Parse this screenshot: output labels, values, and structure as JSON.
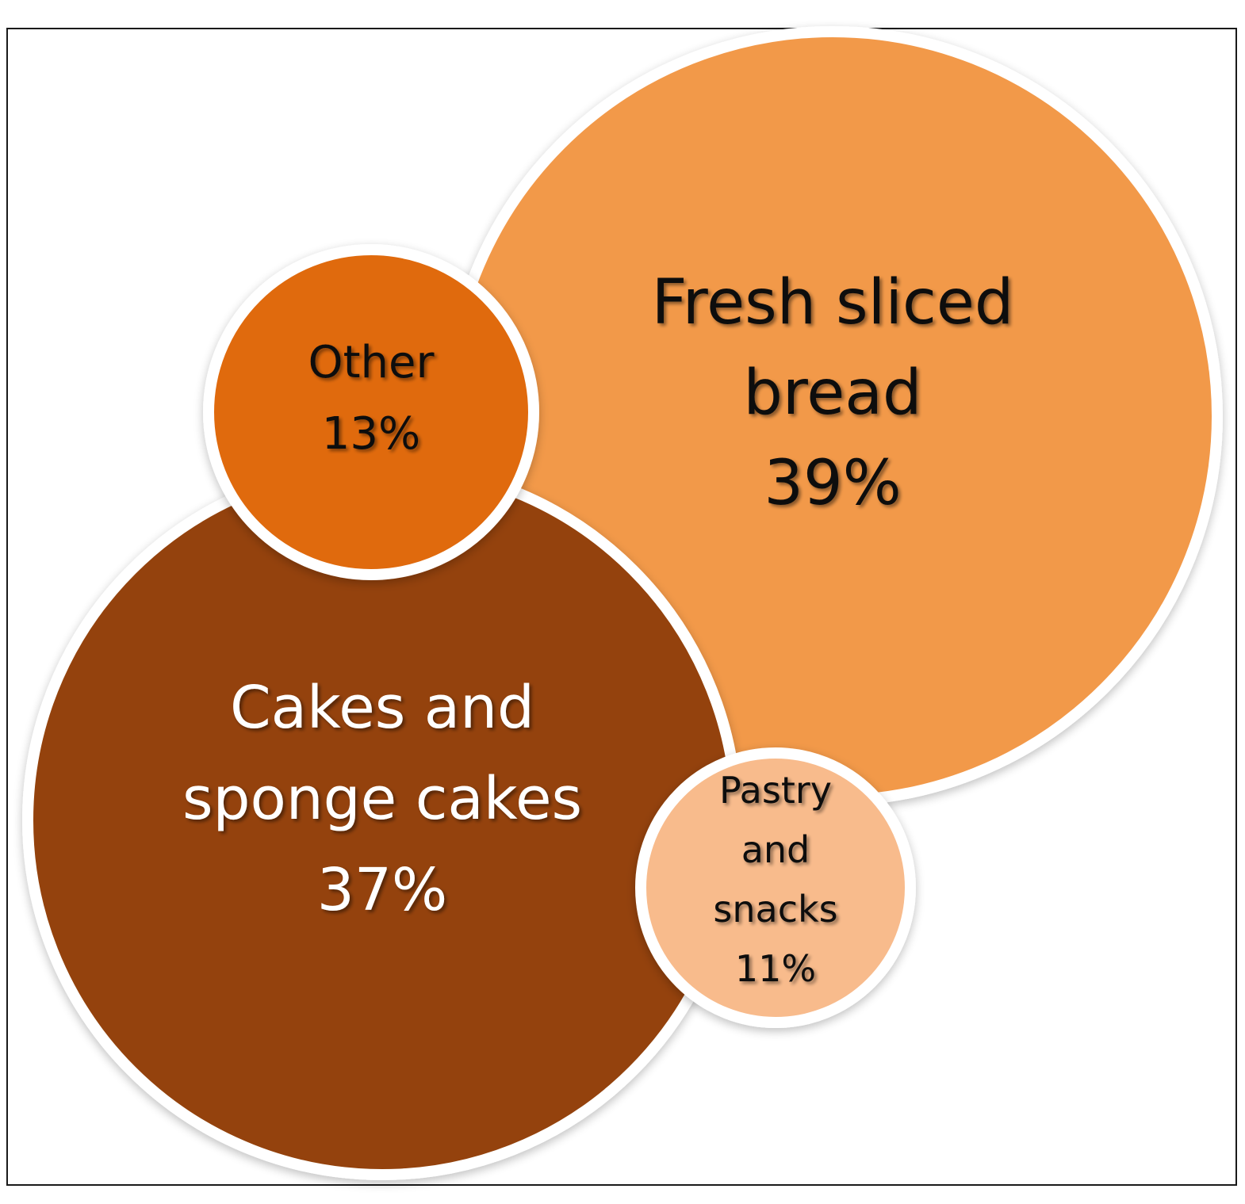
{
  "chart_data": {
    "type": "bubble",
    "series": [
      {
        "id": "fresh",
        "label_lines": [
          "Fresh sliced",
          "bread"
        ],
        "value_label": "39%",
        "value": 39,
        "color": "#f2994a"
      },
      {
        "id": "cakes",
        "label_lines": [
          "Cakes and",
          "sponge cakes"
        ],
        "value_label": "37%",
        "value": 37,
        "color": "#944308"
      },
      {
        "id": "other",
        "label_lines": [
          "Other"
        ],
        "value_label": "13%",
        "value": 13,
        "color": "#e06a0e"
      },
      {
        "id": "pastry",
        "label_lines": [
          "Pastry",
          "and",
          "snacks"
        ],
        "value_label": "11%",
        "value": 11,
        "color": "#f8bb8c"
      }
    ],
    "title": "",
    "legend": "none"
  }
}
